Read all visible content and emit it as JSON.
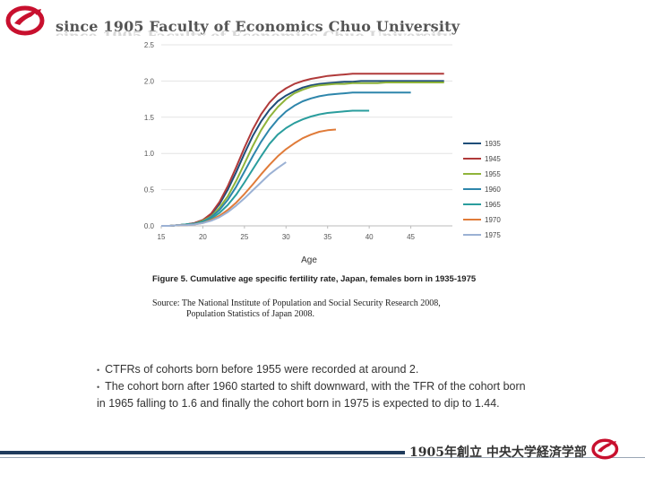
{
  "header": {
    "title": "since 1905 Faculty of Economics Chuo University"
  },
  "chart_data": {
    "type": "line",
    "title": "Figure 5. Cumulative age specific fertility rate, Japan, females born in 1935-1975",
    "xlabel": "Age",
    "ylabel": "",
    "xlim": [
      15,
      50
    ],
    "ylim": [
      0,
      2.5
    ],
    "xticks": [
      "15",
      "20",
      "25",
      "30",
      "35",
      "40",
      "45"
    ],
    "yticks": [
      "0.0",
      "0.5",
      "1.0",
      "1.5",
      "2.0",
      "2.5"
    ],
    "x": [
      15,
      16,
      17,
      18,
      19,
      20,
      21,
      22,
      23,
      24,
      25,
      26,
      27,
      28,
      29,
      30,
      31,
      32,
      33,
      34,
      35,
      36,
      37,
      38,
      39,
      40,
      41,
      42,
      43,
      44,
      45,
      46,
      47,
      48,
      49
    ],
    "series": [
      {
        "name": "1935",
        "color": "#1f4e79",
        "values": [
          0.0,
          0.0,
          0.01,
          0.02,
          0.04,
          0.08,
          0.16,
          0.3,
          0.5,
          0.74,
          1.0,
          1.24,
          1.44,
          1.6,
          1.72,
          1.8,
          1.86,
          1.91,
          1.94,
          1.96,
          1.97,
          1.98,
          1.99,
          1.99,
          2.0,
          2.0,
          2.0,
          2.0,
          2.0,
          2.0,
          2.0,
          2.0,
          2.0,
          2.0,
          2.0
        ]
      },
      {
        "name": "1945",
        "color": "#b03a3a",
        "values": [
          0.0,
          0.0,
          0.01,
          0.02,
          0.04,
          0.08,
          0.17,
          0.33,
          0.55,
          0.81,
          1.08,
          1.33,
          1.54,
          1.7,
          1.82,
          1.9,
          1.96,
          2.0,
          2.03,
          2.05,
          2.07,
          2.08,
          2.09,
          2.1,
          2.1,
          2.1,
          2.1,
          2.1,
          2.1,
          2.1,
          2.1,
          2.1,
          2.1,
          2.1,
          2.1
        ]
      },
      {
        "name": "1955",
        "color": "#8fb43a",
        "values": [
          0.0,
          0.0,
          0.01,
          0.02,
          0.03,
          0.07,
          0.13,
          0.25,
          0.41,
          0.62,
          0.86,
          1.1,
          1.32,
          1.5,
          1.64,
          1.75,
          1.83,
          1.88,
          1.92,
          1.94,
          1.95,
          1.96,
          1.96,
          1.97,
          1.97,
          1.97,
          1.97,
          1.98,
          1.98,
          1.98,
          1.98,
          1.98,
          1.98,
          1.98,
          1.98
        ]
      },
      {
        "name": "1960",
        "color": "#2e86ab",
        "values": [
          0.0,
          0.0,
          0.01,
          0.02,
          0.03,
          0.06,
          0.12,
          0.22,
          0.36,
          0.54,
          0.75,
          0.96,
          1.16,
          1.33,
          1.47,
          1.58,
          1.66,
          1.72,
          1.76,
          1.79,
          1.81,
          1.82,
          1.83,
          1.84,
          1.84,
          1.84,
          1.84,
          1.84,
          1.84,
          1.84,
          1.84,
          null,
          null,
          null,
          null
        ]
      },
      {
        "name": "1965",
        "color": "#2a9d9d",
        "values": [
          0.0,
          0.0,
          0.01,
          0.02,
          0.03,
          0.05,
          0.1,
          0.18,
          0.29,
          0.43,
          0.6,
          0.78,
          0.96,
          1.13,
          1.26,
          1.35,
          1.42,
          1.47,
          1.51,
          1.54,
          1.56,
          1.57,
          1.58,
          1.59,
          1.59,
          1.59,
          null,
          null,
          null,
          null,
          null,
          null,
          null,
          null,
          null
        ]
      },
      {
        "name": "1970",
        "color": "#e07b39",
        "values": [
          0.0,
          0.0,
          0.01,
          0.01,
          0.02,
          0.04,
          0.08,
          0.14,
          0.22,
          0.32,
          0.44,
          0.57,
          0.71,
          0.84,
          0.96,
          1.06,
          1.14,
          1.21,
          1.26,
          1.3,
          1.32,
          1.33,
          null,
          null,
          null,
          null,
          null,
          null,
          null,
          null,
          null,
          null,
          null,
          null,
          null
        ]
      },
      {
        "name": "1975",
        "color": "#9bb1d4",
        "values": [
          0.0,
          0.0,
          0.01,
          0.01,
          0.02,
          0.04,
          0.07,
          0.12,
          0.19,
          0.28,
          0.38,
          0.49,
          0.6,
          0.71,
          0.8,
          0.88,
          null,
          null,
          null,
          null,
          null,
          null,
          null,
          null,
          null,
          null,
          null,
          null,
          null,
          null,
          null,
          null,
          null,
          null,
          null
        ]
      }
    ]
  },
  "figure": {
    "caption": "Figure 5. Cumulative age specific fertility rate, Japan, females born in 1935-1975",
    "source_line1": "Source: The National Institute of Population and Social Security Research 2008,",
    "source_line2": "Population Statistics of Japan 2008."
  },
  "bullets": [
    "CTFRs of cohorts born before 1955 were recorded at around 2.",
    "The cohort born after 1960 started to shift downward, with the TFR of the cohort born in 1965 falling to 1.6 and finally the cohort born in 1975 is expected to dip to 1.44."
  ],
  "footer": {
    "text": "1905年創立 中央大学経済学部"
  },
  "colors": {
    "brand_red": "#c8102e",
    "footer_bar": "#1f3b5c"
  }
}
